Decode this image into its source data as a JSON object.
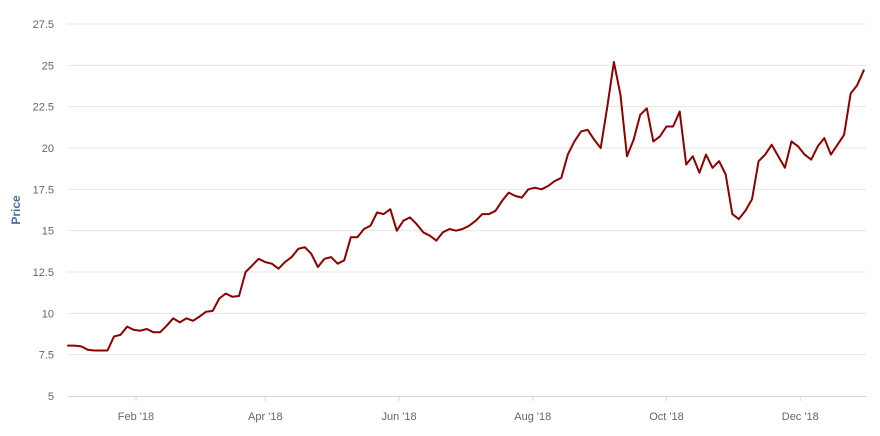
{
  "chart_data": {
    "type": "line",
    "ylabel": "Price",
    "ylim": [
      5,
      27.5
    ],
    "y_ticks": [
      "5",
      "7.5",
      "10",
      "12.5",
      "15",
      "17.5",
      "20",
      "22.5",
      "25",
      "27.5"
    ],
    "x_ticks": [
      "Feb '18",
      "Apr '18",
      "Jun '18",
      "Aug '18",
      "Oct '18",
      "Dec '18"
    ],
    "x_tick_dates": [
      "2018-02-01",
      "2018-04-01",
      "2018-06-01",
      "2018-08-01",
      "2018-10-01",
      "2018-12-01"
    ],
    "x_range": [
      "2018-01-01",
      "2018-12-31"
    ],
    "grid": true,
    "legend": "none",
    "colors": {
      "series": "#8b0000",
      "grid": "#e6e6e6",
      "axis_text": "#666666",
      "axis_title": "#4d6ea0"
    },
    "series": [
      {
        "x": [
          "2018-01-01",
          "2018-01-04",
          "2018-01-07",
          "2018-01-10",
          "2018-01-13",
          "2018-01-16",
          "2018-01-19",
          "2018-01-22",
          "2018-01-25",
          "2018-01-28",
          "2018-01-31",
          "2018-02-03",
          "2018-02-06",
          "2018-02-09",
          "2018-02-12",
          "2018-02-15",
          "2018-02-18",
          "2018-02-21",
          "2018-02-24",
          "2018-02-27",
          "2018-03-02",
          "2018-03-05",
          "2018-03-08",
          "2018-03-11",
          "2018-03-14",
          "2018-03-17",
          "2018-03-20",
          "2018-03-23",
          "2018-03-26",
          "2018-03-29",
          "2018-04-01",
          "2018-04-04",
          "2018-04-07",
          "2018-04-10",
          "2018-04-13",
          "2018-04-16",
          "2018-04-19",
          "2018-04-22",
          "2018-04-25",
          "2018-04-28",
          "2018-05-01",
          "2018-05-04",
          "2018-05-07",
          "2018-05-10",
          "2018-05-13",
          "2018-05-16",
          "2018-05-19",
          "2018-05-22",
          "2018-05-25",
          "2018-05-28",
          "2018-05-31",
          "2018-06-03",
          "2018-06-06",
          "2018-06-09",
          "2018-06-12",
          "2018-06-15",
          "2018-06-18",
          "2018-06-21",
          "2018-06-24",
          "2018-06-27",
          "2018-06-30",
          "2018-07-03",
          "2018-07-06",
          "2018-07-09",
          "2018-07-12",
          "2018-07-15",
          "2018-07-18",
          "2018-07-21",
          "2018-07-24",
          "2018-07-27",
          "2018-07-30",
          "2018-08-02",
          "2018-08-05",
          "2018-08-08",
          "2018-08-11",
          "2018-08-14",
          "2018-08-17",
          "2018-08-20",
          "2018-08-23",
          "2018-08-26",
          "2018-08-29",
          "2018-09-01",
          "2018-09-04",
          "2018-09-07",
          "2018-09-10",
          "2018-09-13",
          "2018-09-16",
          "2018-09-19",
          "2018-09-22",
          "2018-09-25",
          "2018-09-28",
          "2018-10-01",
          "2018-10-04",
          "2018-10-07",
          "2018-10-10",
          "2018-10-13",
          "2018-10-16",
          "2018-10-19",
          "2018-10-22",
          "2018-10-25",
          "2018-10-28",
          "2018-10-31",
          "2018-11-03",
          "2018-11-06",
          "2018-11-09",
          "2018-11-12",
          "2018-11-15",
          "2018-11-18",
          "2018-11-21",
          "2018-11-24",
          "2018-11-27",
          "2018-11-30",
          "2018-12-03",
          "2018-12-06",
          "2018-12-09",
          "2018-12-12",
          "2018-12-15",
          "2018-12-18",
          "2018-12-21",
          "2018-12-24",
          "2018-12-27",
          "2018-12-30"
        ],
        "y": [
          8.05,
          8.05,
          8.0,
          7.8,
          7.75,
          7.75,
          7.75,
          8.6,
          8.7,
          9.2,
          9.0,
          8.95,
          9.05,
          8.85,
          8.85,
          9.25,
          9.7,
          9.45,
          9.7,
          9.55,
          9.8,
          10.1,
          10.15,
          10.9,
          11.2,
          11.0,
          11.05,
          12.5,
          12.9,
          13.3,
          13.1,
          13.0,
          12.7,
          13.1,
          13.4,
          13.9,
          14.0,
          13.6,
          12.8,
          13.3,
          13.4,
          13.0,
          13.2,
          14.6,
          14.6,
          15.1,
          15.3,
          16.1,
          16.0,
          16.3,
          15.0,
          15.6,
          15.8,
          15.4,
          14.9,
          14.7,
          14.4,
          14.9,
          15.1,
          15.0,
          15.1,
          15.3,
          15.6,
          16.0,
          16.0,
          16.2,
          16.8,
          17.3,
          17.1,
          17.0,
          17.5,
          17.6,
          17.5,
          17.7,
          18.0,
          18.2,
          19.6,
          20.4,
          21.0,
          21.1,
          20.5,
          20.0,
          22.5,
          25.2,
          23.2,
          19.5,
          20.5,
          22.0,
          22.4,
          20.4,
          20.7,
          21.3,
          21.3,
          22.2,
          19.0,
          19.5,
          18.5,
          19.6,
          18.8,
          19.2,
          18.4,
          16.0,
          15.7,
          16.2,
          16.9,
          19.2,
          19.6,
          20.2,
          19.5,
          18.8,
          20.4,
          20.1,
          19.6,
          19.3,
          20.1,
          20.6,
          19.6,
          20.2,
          20.8,
          23.3,
          23.8,
          24.7
        ]
      }
    ]
  }
}
